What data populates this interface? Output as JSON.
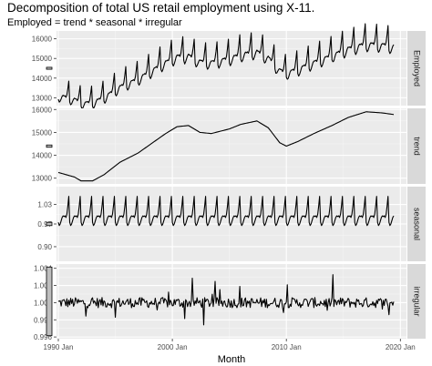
{
  "chart_data": {
    "type": "line",
    "title": "Decomposition of total US retail employment using X-11.",
    "subtitle": "Employed = trend * seasonal * irregular",
    "xlabel": "Month",
    "x_start": "1990 Jan",
    "x_end": "2019 Jun",
    "x_ticks": [
      "1990 Jan",
      "2000 Jan",
      "2010 Jan",
      "2020 Jan"
    ],
    "grid": true,
    "panels": [
      {
        "name": "Employed",
        "ylim": [
          12600,
          16400
        ],
        "yticks": [
          13000,
          14000,
          15000,
          16000
        ],
        "ytick_labels": [
          "13000",
          "14000",
          "15000",
          "16000"
        ],
        "scale_bar_range": 100
      },
      {
        "name": "trend",
        "ylim": [
          12750,
          16050
        ],
        "yticks": [
          13000,
          14000,
          15000,
          16000
        ],
        "ytick_labels": [
          "13000",
          "14000",
          "15000",
          "16000"
        ],
        "scale_bar_range": 100,
        "trend_anchors": [
          [
            "1990-01",
            13250
          ],
          [
            "1991-06",
            13050
          ],
          [
            "1992-01",
            12880
          ],
          [
            "1993-01",
            12880
          ],
          [
            "1994-01",
            13150
          ],
          [
            "1995-06",
            13700
          ],
          [
            "1997-01",
            14100
          ],
          [
            "1998-06",
            14600
          ],
          [
            "1999-06",
            14950
          ],
          [
            "2000-06",
            15250
          ],
          [
            "2001-06",
            15300
          ],
          [
            "2002-06",
            15000
          ],
          [
            "2003-06",
            14950
          ],
          [
            "2005-01",
            15150
          ],
          [
            "2006-01",
            15350
          ],
          [
            "2007-06",
            15500
          ],
          [
            "2008-06",
            15200
          ],
          [
            "2009-06",
            14550
          ],
          [
            "2010-01",
            14400
          ],
          [
            "2011-01",
            14600
          ],
          [
            "2012-06",
            14950
          ],
          [
            "2014-01",
            15300
          ],
          [
            "2015-06",
            15650
          ],
          [
            "2017-01",
            15900
          ],
          [
            "2018-06",
            15850
          ],
          [
            "2019-06",
            15780
          ]
        ]
      },
      {
        "name": "seasonal",
        "ylim": [
          0.855,
          1.085
        ],
        "yticks": [
          0.9,
          0.97,
          1.03
        ],
        "ytick_labels": [
          "0.90",
          "0.97",
          "1.03"
        ],
        "scale_bar_range": 0.01,
        "monthly_factors": [
          0.975,
          0.965,
          0.97,
          0.98,
          0.99,
          0.995,
          0.993,
          0.995,
          0.99,
          1.0,
          1.025,
          1.055
        ]
      },
      {
        "name": "irregular",
        "ylim": [
          0.9958,
          1.0045
        ],
        "yticks": [
          0.996,
          0.998,
          1.0,
          1.002,
          1.004
        ],
        "ytick_labels": [
          "0.996",
          "0.998",
          "1.000",
          "1.002",
          "1.004"
        ],
        "scale_bar_range": 0.008
      }
    ]
  },
  "colors": {
    "panel_bg": "#ebebeb",
    "grid_major": "#ffffff",
    "grid_minor": "#f5f5f5",
    "strip_bg": "#d9d9d9",
    "line": "#000000",
    "scale_bar_fill": "#bebebe"
  }
}
